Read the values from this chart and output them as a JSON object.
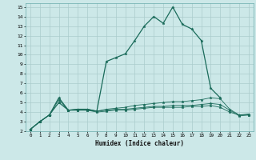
{
  "title": "",
  "xlabel": "Humidex (Indice chaleur)",
  "ylabel": "",
  "bg_color": "#cce8e8",
  "grid_color": "#aacccc",
  "line_color": "#1a6b5a",
  "xlim": [
    -0.5,
    23.5
  ],
  "ylim": [
    2,
    15.4
  ],
  "xticks": [
    0,
    1,
    2,
    3,
    4,
    5,
    6,
    7,
    8,
    9,
    10,
    11,
    12,
    13,
    14,
    15,
    16,
    17,
    18,
    19,
    20,
    21,
    22,
    23
  ],
  "yticks": [
    2,
    3,
    4,
    5,
    6,
    7,
    8,
    9,
    10,
    11,
    12,
    13,
    14,
    15
  ],
  "series": [
    {
      "x": [
        0,
        1,
        2,
        3,
        4,
        5,
        6,
        7,
        8,
        9,
        10,
        11,
        12,
        13,
        14,
        15,
        16,
        17,
        18,
        19,
        20
      ],
      "y": [
        2.2,
        3.0,
        3.7,
        5.5,
        4.2,
        4.3,
        4.3,
        4.1,
        9.3,
        9.7,
        10.1,
        11.5,
        13.0,
        14.0,
        13.3,
        15.0,
        13.2,
        12.7,
        11.5,
        6.5,
        5.5
      ]
    },
    {
      "x": [
        0,
        1,
        2,
        3,
        4,
        5,
        6,
        7,
        8,
        9,
        10,
        11,
        12,
        13,
        14,
        15,
        16,
        17,
        18,
        19,
        20,
        21,
        22,
        23
      ],
      "y": [
        2.2,
        3.0,
        3.7,
        5.3,
        4.2,
        4.3,
        4.3,
        4.1,
        4.3,
        4.4,
        4.5,
        4.7,
        4.8,
        4.9,
        5.0,
        5.1,
        5.1,
        5.2,
        5.3,
        5.5,
        5.4,
        4.3,
        3.7,
        3.8
      ]
    },
    {
      "x": [
        0,
        1,
        2,
        3,
        4,
        5,
        6,
        7,
        8,
        9,
        10,
        11,
        12,
        13,
        14,
        15,
        16,
        17,
        18,
        19,
        20,
        21,
        22,
        23
      ],
      "y": [
        2.2,
        3.0,
        3.7,
        5.0,
        4.2,
        4.2,
        4.2,
        4.1,
        4.2,
        4.3,
        4.3,
        4.4,
        4.5,
        4.6,
        4.6,
        4.7,
        4.7,
        4.7,
        4.8,
        4.9,
        4.8,
        4.2,
        3.6,
        3.7
      ]
    },
    {
      "x": [
        0,
        1,
        2,
        3,
        4,
        5,
        6,
        7,
        8,
        9,
        10,
        11,
        12,
        13,
        14,
        15,
        16,
        17,
        18,
        19,
        20,
        21,
        22,
        23
      ],
      "y": [
        2.2,
        3.0,
        3.7,
        5.0,
        4.2,
        4.2,
        4.2,
        4.0,
        4.1,
        4.2,
        4.2,
        4.3,
        4.4,
        4.5,
        4.5,
        4.5,
        4.5,
        4.6,
        4.6,
        4.7,
        4.5,
        4.0,
        3.7,
        3.7
      ]
    }
  ]
}
